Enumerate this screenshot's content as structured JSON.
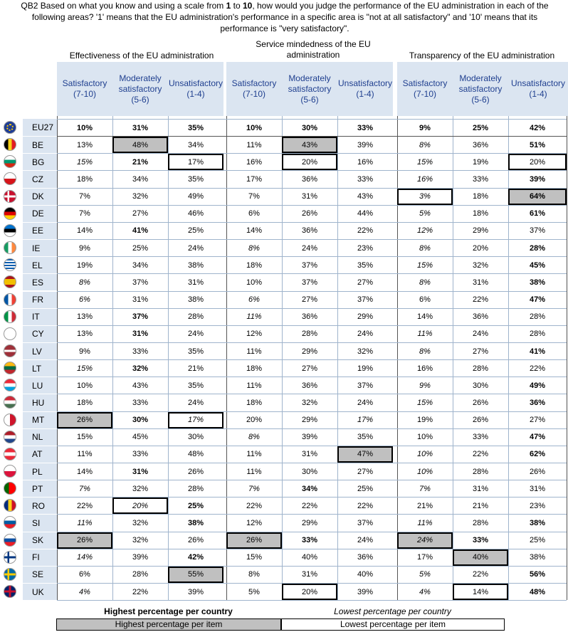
{
  "question": {
    "prefix": "QB2 Based on what you know and using a scale from ",
    "b1": "1",
    "mid1": " to ",
    "b2": "10",
    "rest": ", how would you judge the performance of the EU administration in each of the following areas? '1' means that the EU administration's performance in a specific area is \"not at all satisfactory\" and '10' means that its performance is \"very satisfactory\"."
  },
  "groups": [
    "Effectiveness of the EU administration",
    "Service mindedness of the EU administration",
    "Transparency of the EU administration"
  ],
  "subheads": [
    [
      "Satisfactory",
      "(7-10)"
    ],
    [
      "Moderately",
      "satisfactory",
      "(5-6)"
    ],
    [
      "Unsatisfactory",
      "(1-4)"
    ]
  ],
  "legend": {
    "high_country": "Highest percentage per country",
    "low_country": "Lowest percentage per country",
    "high_item": "Highest percentage per item",
    "low_item": "Lowest percentage per item"
  },
  "rows": [
    {
      "c": "EU27",
      "flag": "eu",
      "v": [
        [
          "10%",
          "b"
        ],
        [
          "31%",
          "b"
        ],
        [
          "35%",
          "b"
        ],
        [
          "10%",
          "b"
        ],
        [
          "30%",
          "b"
        ],
        [
          "33%",
          "b"
        ],
        [
          "9%",
          "b"
        ],
        [
          "25%",
          "b"
        ],
        [
          "42%",
          "b"
        ]
      ]
    },
    {
      "c": "BE",
      "flag": "be",
      "v": [
        [
          "13%",
          ""
        ],
        [
          "48%",
          "hl"
        ],
        [
          "34%",
          ""
        ],
        [
          "11%",
          ""
        ],
        [
          "43%",
          "hl"
        ],
        [
          "39%",
          ""
        ],
        [
          "8%",
          "i"
        ],
        [
          "36%",
          ""
        ],
        [
          "51%",
          "b"
        ]
      ]
    },
    {
      "c": "BG",
      "flag": "bg",
      "v": [
        [
          "15%",
          "i"
        ],
        [
          "21%",
          "b"
        ],
        [
          "17%",
          "lo"
        ],
        [
          "16%",
          ""
        ],
        [
          "20%",
          "lo"
        ],
        [
          "16%",
          ""
        ],
        [
          "15%",
          "i"
        ],
        [
          "19%",
          ""
        ],
        [
          "20%",
          "lo"
        ]
      ]
    },
    {
      "c": "CZ",
      "flag": "cz",
      "v": [
        [
          "18%",
          ""
        ],
        [
          "34%",
          ""
        ],
        [
          "35%",
          ""
        ],
        [
          "17%",
          ""
        ],
        [
          "36%",
          ""
        ],
        [
          "33%",
          ""
        ],
        [
          "16%",
          "i"
        ],
        [
          "33%",
          ""
        ],
        [
          "39%",
          "b"
        ]
      ]
    },
    {
      "c": "DK",
      "flag": "dk",
      "v": [
        [
          "7%",
          ""
        ],
        [
          "32%",
          ""
        ],
        [
          "49%",
          ""
        ],
        [
          "7%",
          ""
        ],
        [
          "31%",
          ""
        ],
        [
          "43%",
          ""
        ],
        [
          "3%",
          "lo i"
        ],
        [
          "18%",
          ""
        ],
        [
          "64%",
          "hl b"
        ]
      ]
    },
    {
      "c": "DE",
      "flag": "de",
      "v": [
        [
          "7%",
          ""
        ],
        [
          "27%",
          ""
        ],
        [
          "46%",
          ""
        ],
        [
          "6%",
          ""
        ],
        [
          "26%",
          ""
        ],
        [
          "44%",
          ""
        ],
        [
          "5%",
          "i"
        ],
        [
          "18%",
          ""
        ],
        [
          "61%",
          "b"
        ]
      ]
    },
    {
      "c": "EE",
      "flag": "ee",
      "v": [
        [
          "14%",
          ""
        ],
        [
          "41%",
          "b"
        ],
        [
          "25%",
          ""
        ],
        [
          "14%",
          ""
        ],
        [
          "36%",
          ""
        ],
        [
          "22%",
          ""
        ],
        [
          "12%",
          "i"
        ],
        [
          "29%",
          ""
        ],
        [
          "37%",
          ""
        ]
      ]
    },
    {
      "c": "IE",
      "flag": "ie",
      "v": [
        [
          "9%",
          ""
        ],
        [
          "25%",
          ""
        ],
        [
          "24%",
          ""
        ],
        [
          "8%",
          "i"
        ],
        [
          "24%",
          ""
        ],
        [
          "23%",
          ""
        ],
        [
          "8%",
          "i"
        ],
        [
          "20%",
          ""
        ],
        [
          "28%",
          "b"
        ]
      ]
    },
    {
      "c": "EL",
      "flag": "el",
      "v": [
        [
          "19%",
          ""
        ],
        [
          "34%",
          ""
        ],
        [
          "38%",
          ""
        ],
        [
          "18%",
          ""
        ],
        [
          "37%",
          ""
        ],
        [
          "35%",
          ""
        ],
        [
          "15%",
          "i"
        ],
        [
          "32%",
          ""
        ],
        [
          "45%",
          "b"
        ]
      ]
    },
    {
      "c": "ES",
      "flag": "es",
      "v": [
        [
          "8%",
          "i"
        ],
        [
          "37%",
          ""
        ],
        [
          "31%",
          ""
        ],
        [
          "10%",
          ""
        ],
        [
          "37%",
          ""
        ],
        [
          "27%",
          ""
        ],
        [
          "8%",
          "i"
        ],
        [
          "31%",
          ""
        ],
        [
          "38%",
          "b"
        ]
      ]
    },
    {
      "c": "FR",
      "flag": "fr",
      "v": [
        [
          "6%",
          "i"
        ],
        [
          "31%",
          ""
        ],
        [
          "38%",
          ""
        ],
        [
          "6%",
          "i"
        ],
        [
          "27%",
          ""
        ],
        [
          "37%",
          ""
        ],
        [
          "6%",
          ""
        ],
        [
          "22%",
          ""
        ],
        [
          "47%",
          "b"
        ]
      ]
    },
    {
      "c": "IT",
      "flag": "it",
      "v": [
        [
          "13%",
          ""
        ],
        [
          "37%",
          "b"
        ],
        [
          "28%",
          ""
        ],
        [
          "11%",
          "i"
        ],
        [
          "36%",
          ""
        ],
        [
          "29%",
          ""
        ],
        [
          "14%",
          ""
        ],
        [
          "36%",
          ""
        ],
        [
          "28%",
          ""
        ]
      ]
    },
    {
      "c": "CY",
      "flag": "cy",
      "v": [
        [
          "13%",
          ""
        ],
        [
          "31%",
          "b"
        ],
        [
          "24%",
          ""
        ],
        [
          "12%",
          ""
        ],
        [
          "28%",
          ""
        ],
        [
          "24%",
          ""
        ],
        [
          "11%",
          "i"
        ],
        [
          "24%",
          ""
        ],
        [
          "28%",
          ""
        ]
      ]
    },
    {
      "c": "LV",
      "flag": "lv",
      "v": [
        [
          "9%",
          ""
        ],
        [
          "33%",
          ""
        ],
        [
          "35%",
          ""
        ],
        [
          "11%",
          ""
        ],
        [
          "29%",
          ""
        ],
        [
          "32%",
          ""
        ],
        [
          "8%",
          "i"
        ],
        [
          "27%",
          ""
        ],
        [
          "41%",
          "b"
        ]
      ]
    },
    {
      "c": "LT",
      "flag": "lt",
      "v": [
        [
          "15%",
          "i"
        ],
        [
          "32%",
          "b"
        ],
        [
          "21%",
          ""
        ],
        [
          "18%",
          ""
        ],
        [
          "27%",
          ""
        ],
        [
          "19%",
          ""
        ],
        [
          "16%",
          ""
        ],
        [
          "28%",
          ""
        ],
        [
          "22%",
          ""
        ]
      ]
    },
    {
      "c": "LU",
      "flag": "lu",
      "v": [
        [
          "10%",
          ""
        ],
        [
          "43%",
          ""
        ],
        [
          "35%",
          ""
        ],
        [
          "11%",
          ""
        ],
        [
          "36%",
          ""
        ],
        [
          "37%",
          ""
        ],
        [
          "9%",
          "i"
        ],
        [
          "30%",
          ""
        ],
        [
          "49%",
          "b"
        ]
      ]
    },
    {
      "c": "HU",
      "flag": "hu",
      "v": [
        [
          "18%",
          ""
        ],
        [
          "33%",
          ""
        ],
        [
          "24%",
          ""
        ],
        [
          "18%",
          ""
        ],
        [
          "32%",
          ""
        ],
        [
          "24%",
          ""
        ],
        [
          "15%",
          "i"
        ],
        [
          "26%",
          ""
        ],
        [
          "36%",
          "b"
        ]
      ]
    },
    {
      "c": "MT",
      "flag": "mt",
      "v": [
        [
          "26%",
          "hl"
        ],
        [
          "30%",
          "b"
        ],
        [
          "17%",
          "lo i"
        ],
        [
          "20%",
          ""
        ],
        [
          "29%",
          ""
        ],
        [
          "17%",
          "i"
        ],
        [
          "19%",
          ""
        ],
        [
          "26%",
          ""
        ],
        [
          "27%",
          ""
        ]
      ]
    },
    {
      "c": "NL",
      "flag": "nl",
      "v": [
        [
          "15%",
          ""
        ],
        [
          "45%",
          ""
        ],
        [
          "30%",
          ""
        ],
        [
          "8%",
          "i"
        ],
        [
          "39%",
          ""
        ],
        [
          "35%",
          ""
        ],
        [
          "10%",
          ""
        ],
        [
          "33%",
          ""
        ],
        [
          "47%",
          "b"
        ]
      ]
    },
    {
      "c": "AT",
      "flag": "at",
      "v": [
        [
          "11%",
          ""
        ],
        [
          "33%",
          ""
        ],
        [
          "48%",
          ""
        ],
        [
          "11%",
          ""
        ],
        [
          "31%",
          ""
        ],
        [
          "47%",
          "hl"
        ],
        [
          "10%",
          "i"
        ],
        [
          "22%",
          ""
        ],
        [
          "62%",
          "b"
        ]
      ]
    },
    {
      "c": "PL",
      "flag": "pl",
      "v": [
        [
          "14%",
          ""
        ],
        [
          "31%",
          "b"
        ],
        [
          "26%",
          ""
        ],
        [
          "11%",
          ""
        ],
        [
          "30%",
          ""
        ],
        [
          "27%",
          ""
        ],
        [
          "10%",
          "i"
        ],
        [
          "28%",
          ""
        ],
        [
          "26%",
          ""
        ]
      ]
    },
    {
      "c": "PT",
      "flag": "pt",
      "v": [
        [
          "7%",
          "i"
        ],
        [
          "32%",
          ""
        ],
        [
          "28%",
          ""
        ],
        [
          "7%",
          "i"
        ],
        [
          "34%",
          "b"
        ],
        [
          "25%",
          ""
        ],
        [
          "7%",
          "i"
        ],
        [
          "31%",
          ""
        ],
        [
          "31%",
          ""
        ]
      ]
    },
    {
      "c": "RO",
      "flag": "ro",
      "v": [
        [
          "22%",
          ""
        ],
        [
          "20%",
          "lo i"
        ],
        [
          "25%",
          "b"
        ],
        [
          "22%",
          ""
        ],
        [
          "22%",
          ""
        ],
        [
          "22%",
          ""
        ],
        [
          "21%",
          ""
        ],
        [
          "21%",
          ""
        ],
        [
          "23%",
          ""
        ]
      ]
    },
    {
      "c": "SI",
      "flag": "si",
      "v": [
        [
          "11%",
          "i"
        ],
        [
          "32%",
          ""
        ],
        [
          "38%",
          "b"
        ],
        [
          "12%",
          ""
        ],
        [
          "29%",
          ""
        ],
        [
          "37%",
          ""
        ],
        [
          "11%",
          "i"
        ],
        [
          "28%",
          ""
        ],
        [
          "38%",
          "b"
        ]
      ]
    },
    {
      "c": "SK",
      "flag": "sk",
      "v": [
        [
          "26%",
          "hl"
        ],
        [
          "32%",
          ""
        ],
        [
          "26%",
          ""
        ],
        [
          "26%",
          "hl"
        ],
        [
          "33%",
          "b"
        ],
        [
          "24%",
          ""
        ],
        [
          "24%",
          "hl i"
        ],
        [
          "33%",
          "b"
        ],
        [
          "25%",
          ""
        ]
      ]
    },
    {
      "c": "FI",
      "flag": "fi",
      "v": [
        [
          "14%",
          "i"
        ],
        [
          "39%",
          ""
        ],
        [
          "42%",
          "b"
        ],
        [
          "15%",
          ""
        ],
        [
          "40%",
          ""
        ],
        [
          "36%",
          ""
        ],
        [
          "17%",
          ""
        ],
        [
          "40%",
          "hl"
        ],
        [
          "38%",
          ""
        ]
      ]
    },
    {
      "c": "SE",
      "flag": "se",
      "v": [
        [
          "6%",
          ""
        ],
        [
          "28%",
          ""
        ],
        [
          "55%",
          "hl"
        ],
        [
          "8%",
          ""
        ],
        [
          "31%",
          ""
        ],
        [
          "40%",
          ""
        ],
        [
          "5%",
          "i"
        ],
        [
          "22%",
          ""
        ],
        [
          "56%",
          "b"
        ]
      ]
    },
    {
      "c": "UK",
      "flag": "uk",
      "v": [
        [
          "4%",
          "i"
        ],
        [
          "22%",
          ""
        ],
        [
          "39%",
          ""
        ],
        [
          "5%",
          ""
        ],
        [
          "20%",
          "lo"
        ],
        [
          "39%",
          ""
        ],
        [
          "4%",
          "i"
        ],
        [
          "14%",
          "lo"
        ],
        [
          "48%",
          "b"
        ]
      ]
    }
  ]
}
